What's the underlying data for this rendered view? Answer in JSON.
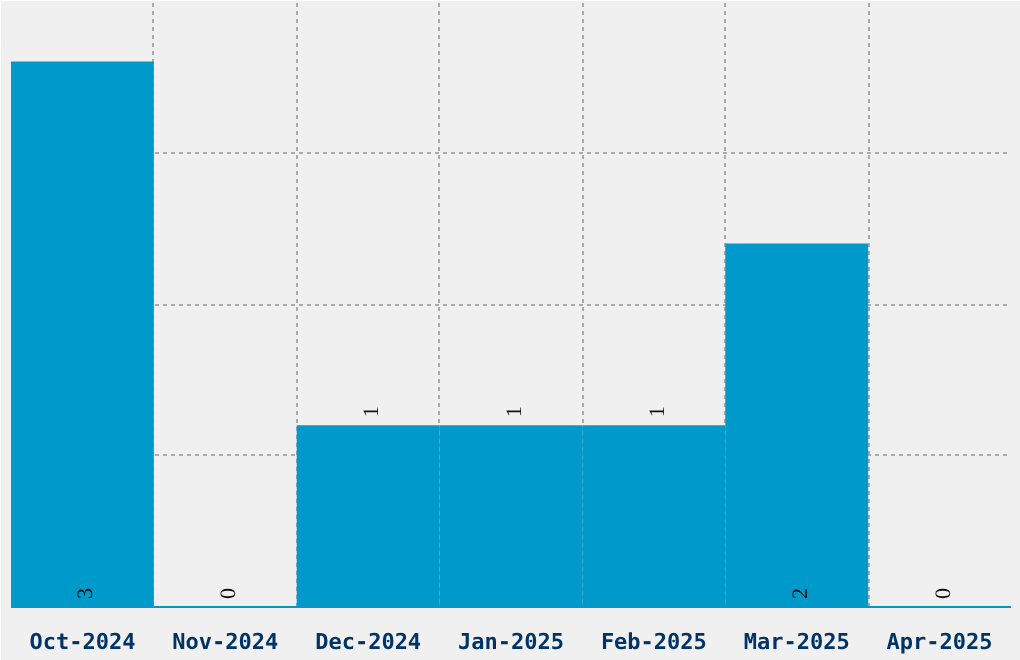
{
  "chart_data": {
    "type": "bar",
    "categories": [
      "Oct-2024",
      "Nov-2024",
      "Dec-2024",
      "Jan-2025",
      "Feb-2025",
      "Mar-2025",
      "Apr-2025"
    ],
    "values": [
      3,
      0,
      1,
      1,
      1,
      2,
      0
    ],
    "color": "#0099cc",
    "data_labels": true,
    "ylim": [
      0,
      3.3333
    ],
    "tick_labels": "x",
    "grid": true
  }
}
